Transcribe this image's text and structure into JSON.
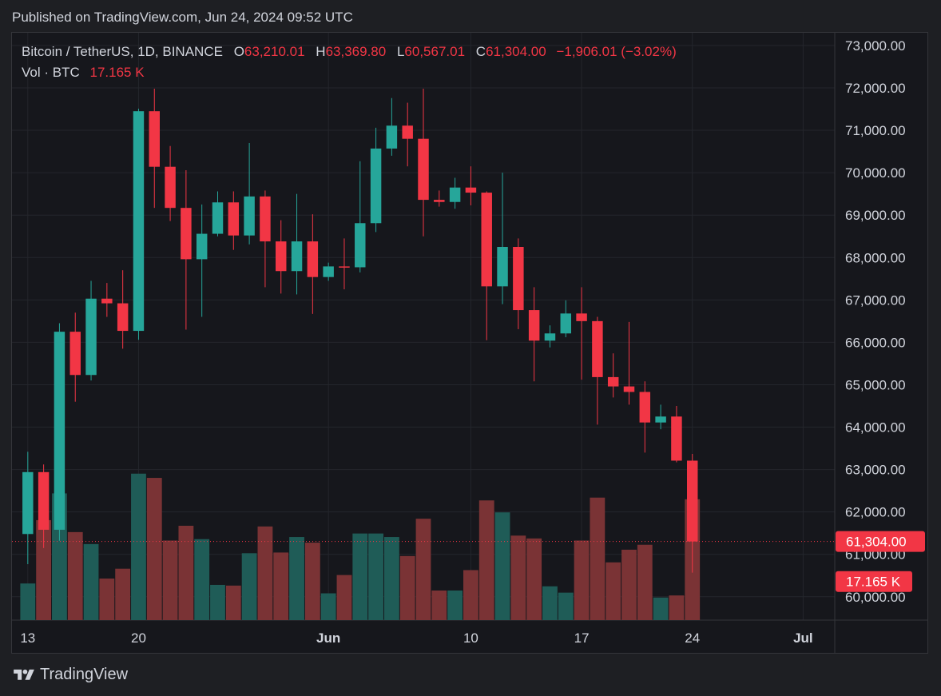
{
  "header": {
    "published": "Published on TradingView.com, Jun 24, 2024 09:52 UTC"
  },
  "legend": {
    "symbol": "Bitcoin / TetherUS, 1D, BINANCE",
    "open_label": "O",
    "open": "63,210.01",
    "high_label": "H",
    "high": "63,369.80",
    "low_label": "L",
    "low": "60,567.01",
    "close_label": "C",
    "close": "61,304.00",
    "change": "−1,906.01 (−3.02%)",
    "vol_label": "Vol · BTC",
    "vol_value": "17.165 K"
  },
  "footer": {
    "brand": "TradingView"
  },
  "colors": {
    "up": "#26a69a",
    "down": "#f23645",
    "vol_up": "#1f5c57",
    "vol_down": "#7a3335",
    "price_tag": "#f23645"
  },
  "chart_data": {
    "type": "candlestick",
    "symbol": "Bitcoin / TetherUS",
    "interval": "1D",
    "exchange": "BINANCE",
    "x_ticks": [
      {
        "label": "13",
        "date": "2024-05-13"
      },
      {
        "label": "20",
        "date": "2024-05-20"
      },
      {
        "label": "Jun",
        "date": "2024-06-01"
      },
      {
        "label": "10",
        "date": "2024-06-10"
      },
      {
        "label": "17",
        "date": "2024-06-17"
      },
      {
        "label": "24",
        "date": "2024-06-24"
      },
      {
        "label": "Jul",
        "date": "2024-07-01"
      }
    ],
    "y_ticks": [
      "60,000.00",
      "61,000.00",
      "62,000.00",
      "63,000.00",
      "64,000.00",
      "65,000.00",
      "66,000.00",
      "67,000.00",
      "68,000.00",
      "69,000.00",
      "70,000.00",
      "71,000.00",
      "72,000.00",
      "73,000.00"
    ],
    "ylim": [
      59450,
      73300
    ],
    "xlim": [
      "2024-05-12",
      "2024-07-03"
    ],
    "last_price": 61304.0,
    "last_price_label": "61,304.00",
    "last_volume_label": "17.165 K",
    "volume_max": 21000,
    "candles": [
      {
        "date": "2024-05-13",
        "o": 61480,
        "h": 63420,
        "l": 60770,
        "c": 62940,
        "v": 5200
      },
      {
        "date": "2024-05-14",
        "o": 62940,
        "h": 63120,
        "l": 61150,
        "c": 61580,
        "v": 14200
      },
      {
        "date": "2024-05-15",
        "o": 61580,
        "h": 66450,
        "l": 61320,
        "c": 66250,
        "v": 18000
      },
      {
        "date": "2024-05-16",
        "o": 66250,
        "h": 66700,
        "l": 64600,
        "c": 65230,
        "v": 12500
      },
      {
        "date": "2024-05-17",
        "o": 65230,
        "h": 67450,
        "l": 65100,
        "c": 67030,
        "v": 10800
      },
      {
        "date": "2024-05-18",
        "o": 67030,
        "h": 67400,
        "l": 66600,
        "c": 66920,
        "v": 5900
      },
      {
        "date": "2024-05-19",
        "o": 66920,
        "h": 67700,
        "l": 65850,
        "c": 66270,
        "v": 7300
      },
      {
        "date": "2024-05-20",
        "o": 66270,
        "h": 71510,
        "l": 66060,
        "c": 71450,
        "v": 20800
      },
      {
        "date": "2024-05-21",
        "o": 71450,
        "h": 71980,
        "l": 69170,
        "c": 70140,
        "v": 20200
      },
      {
        "date": "2024-05-22",
        "o": 70140,
        "h": 70630,
        "l": 68860,
        "c": 69170,
        "v": 11300
      },
      {
        "date": "2024-05-23",
        "o": 69170,
        "h": 70060,
        "l": 66300,
        "c": 67960,
        "v": 13400
      },
      {
        "date": "2024-05-24",
        "o": 67960,
        "h": 69250,
        "l": 66600,
        "c": 68560,
        "v": 11500
      },
      {
        "date": "2024-05-25",
        "o": 68560,
        "h": 69560,
        "l": 68500,
        "c": 69300,
        "v": 5000
      },
      {
        "date": "2024-05-26",
        "o": 69300,
        "h": 69560,
        "l": 68180,
        "c": 68520,
        "v": 4900
      },
      {
        "date": "2024-05-27",
        "o": 68520,
        "h": 70700,
        "l": 68310,
        "c": 69440,
        "v": 9500
      },
      {
        "date": "2024-05-28",
        "o": 69440,
        "h": 69580,
        "l": 67300,
        "c": 68380,
        "v": 13300
      },
      {
        "date": "2024-05-29",
        "o": 68380,
        "h": 68880,
        "l": 67150,
        "c": 67680,
        "v": 9600
      },
      {
        "date": "2024-05-30",
        "o": 67680,
        "h": 69500,
        "l": 67130,
        "c": 68380,
        "v": 11800
      },
      {
        "date": "2024-05-31",
        "o": 68380,
        "h": 69020,
        "l": 66670,
        "c": 67540,
        "v": 11000
      },
      {
        "date": "2024-06-01",
        "o": 67540,
        "h": 67880,
        "l": 67450,
        "c": 67790,
        "v": 3800
      },
      {
        "date": "2024-06-02",
        "o": 67790,
        "h": 68450,
        "l": 67250,
        "c": 67770,
        "v": 6400
      },
      {
        "date": "2024-06-03",
        "o": 67770,
        "h": 70270,
        "l": 67650,
        "c": 68810,
        "v": 12300
      },
      {
        "date": "2024-06-04",
        "o": 68810,
        "h": 71060,
        "l": 68600,
        "c": 70570,
        "v": 12300
      },
      {
        "date": "2024-06-05",
        "o": 70570,
        "h": 71760,
        "l": 70400,
        "c": 71110,
        "v": 11800
      },
      {
        "date": "2024-06-06",
        "o": 71110,
        "h": 71650,
        "l": 70150,
        "c": 70800,
        "v": 9100
      },
      {
        "date": "2024-06-07",
        "o": 70800,
        "h": 71980,
        "l": 68500,
        "c": 69360,
        "v": 14400
      },
      {
        "date": "2024-06-08",
        "o": 69360,
        "h": 69580,
        "l": 69200,
        "c": 69310,
        "v": 4200
      },
      {
        "date": "2024-06-09",
        "o": 69310,
        "h": 69880,
        "l": 69150,
        "c": 69650,
        "v": 4200
      },
      {
        "date": "2024-06-10",
        "o": 69650,
        "h": 70150,
        "l": 69230,
        "c": 69530,
        "v": 7100
      },
      {
        "date": "2024-06-11",
        "o": 69530,
        "h": 69560,
        "l": 66050,
        "c": 67320,
        "v": 17000
      },
      {
        "date": "2024-06-12",
        "o": 67320,
        "h": 70000,
        "l": 66900,
        "c": 68250,
        "v": 15300
      },
      {
        "date": "2024-06-13",
        "o": 68250,
        "h": 68450,
        "l": 66310,
        "c": 66760,
        "v": 12000
      },
      {
        "date": "2024-06-14",
        "o": 66760,
        "h": 67300,
        "l": 65080,
        "c": 66040,
        "v": 11600
      },
      {
        "date": "2024-06-15",
        "o": 66040,
        "h": 66400,
        "l": 65880,
        "c": 66210,
        "v": 4800
      },
      {
        "date": "2024-06-16",
        "o": 66210,
        "h": 66990,
        "l": 66120,
        "c": 66680,
        "v": 3900
      },
      {
        "date": "2024-06-17",
        "o": 66680,
        "h": 67300,
        "l": 65120,
        "c": 66500,
        "v": 11300
      },
      {
        "date": "2024-06-18",
        "o": 66500,
        "h": 66600,
        "l": 64060,
        "c": 65180,
        "v": 17400
      },
      {
        "date": "2024-06-19",
        "o": 65180,
        "h": 65740,
        "l": 64700,
        "c": 64960,
        "v": 8200
      },
      {
        "date": "2024-06-20",
        "o": 64960,
        "h": 66480,
        "l": 64530,
        "c": 64830,
        "v": 10000
      },
      {
        "date": "2024-06-21",
        "o": 64830,
        "h": 65080,
        "l": 63400,
        "c": 64110,
        "v": 10700
      },
      {
        "date": "2024-06-22",
        "o": 64110,
        "h": 64530,
        "l": 63950,
        "c": 64250,
        "v": 3200
      },
      {
        "date": "2024-06-23",
        "o": 64250,
        "h": 64500,
        "l": 63170,
        "c": 63210,
        "v": 3500
      },
      {
        "date": "2024-06-24",
        "o": 63210,
        "h": 63370,
        "l": 60570,
        "c": 61304,
        "v": 17165
      }
    ]
  }
}
